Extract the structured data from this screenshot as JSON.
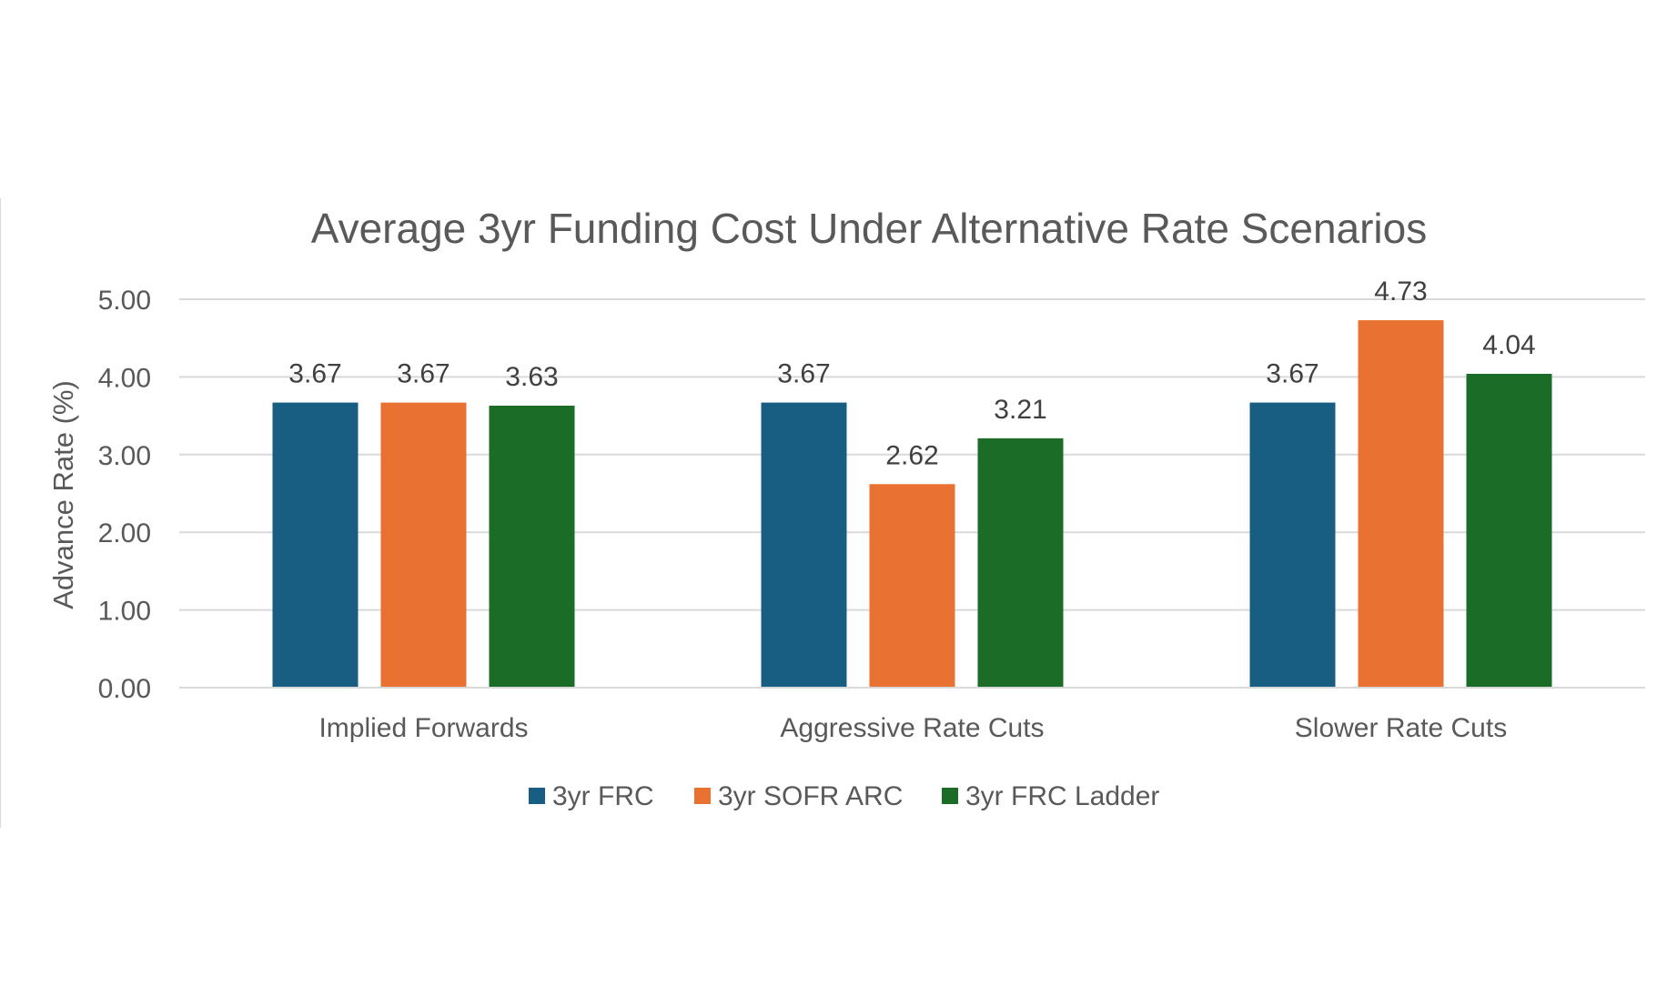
{
  "chart_data": {
    "type": "bar",
    "title": "Average 3yr Funding Cost Under Alternative Rate Scenarios",
    "xlabel": "",
    "ylabel": "Advance Rate (%)",
    "ylim": [
      0,
      5
    ],
    "y_ticks": [
      "0.00",
      "1.00",
      "2.00",
      "3.00",
      "4.00",
      "5.00"
    ],
    "grid": true,
    "legend_position": "bottom",
    "categories": [
      "Implied Forwards",
      "Aggressive Rate Cuts",
      "Slower Rate Cuts"
    ],
    "series": [
      {
        "name": "3yr FRC",
        "color": "#175E82",
        "values": [
          3.67,
          3.67,
          3.67
        ],
        "labels": [
          "3.67",
          "3.67",
          "3.67"
        ]
      },
      {
        "name": "3yr SOFR ARC",
        "color": "#E97233",
        "values": [
          3.67,
          2.62,
          4.73
        ],
        "labels": [
          "3.67",
          "2.62",
          "4.73"
        ]
      },
      {
        "name": "3yr FRC Ladder",
        "color": "#1A6C26",
        "values": [
          3.63,
          3.21,
          4.04
        ],
        "labels": [
          "3.63",
          "3.21",
          "4.04"
        ]
      }
    ]
  }
}
